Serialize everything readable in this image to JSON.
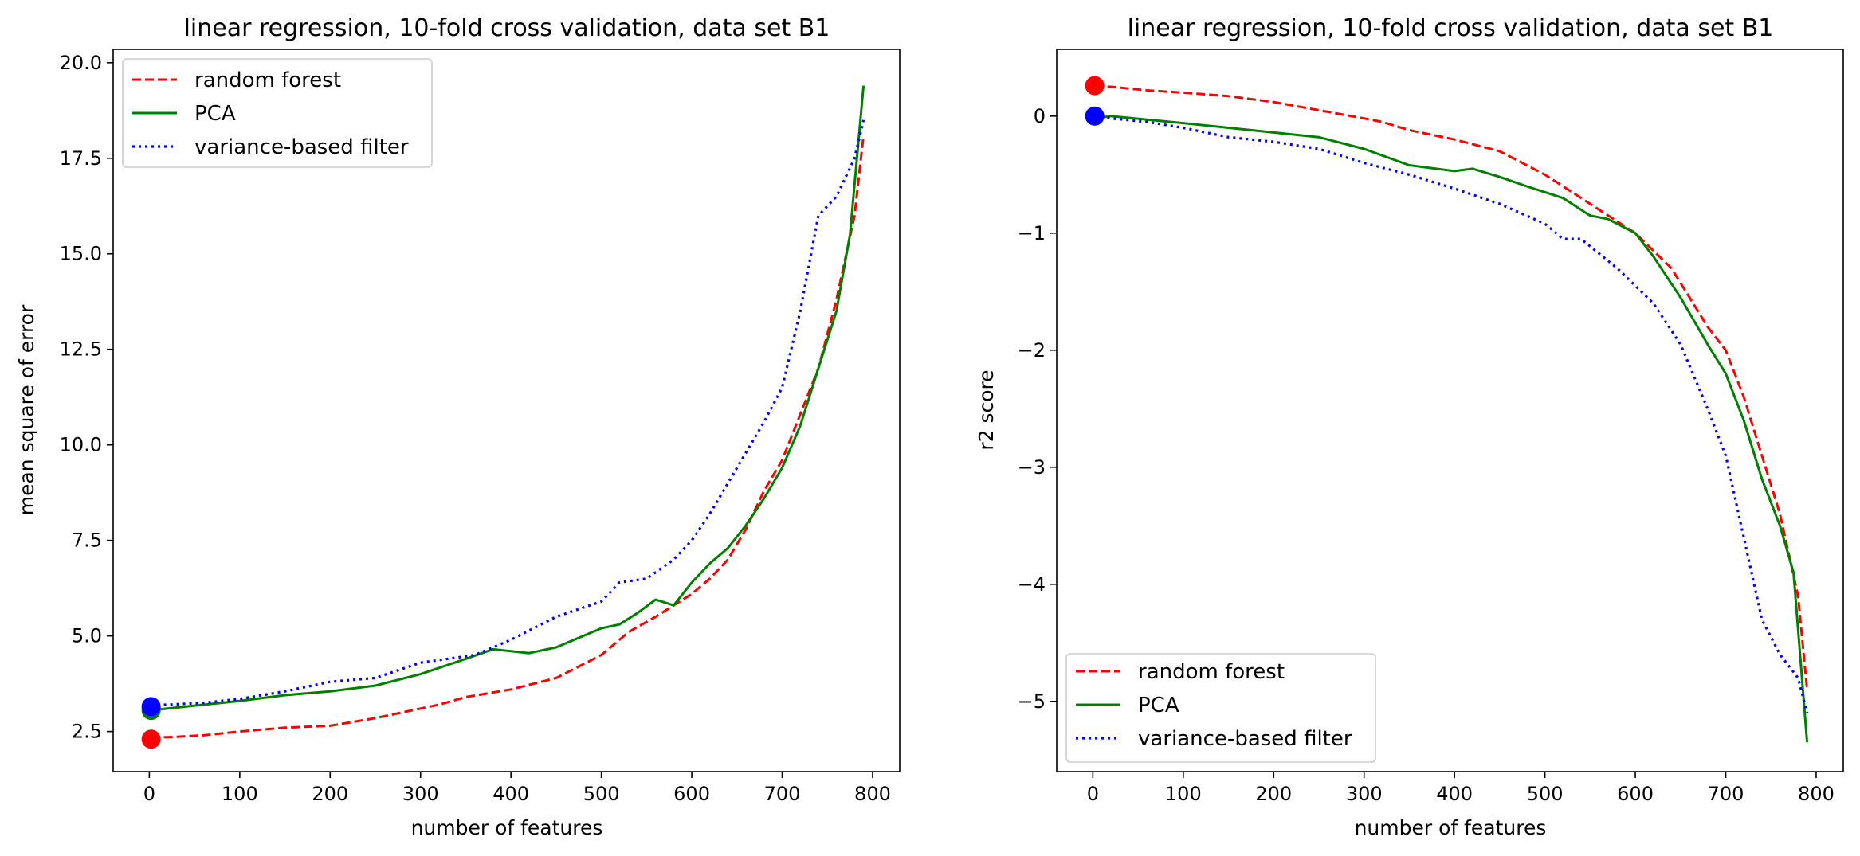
{
  "colors": {
    "random_forest": "#ff0000",
    "pca": "#008000",
    "variance_filter": "#0000ff"
  },
  "chart_data": [
    {
      "type": "line",
      "title": "linear regression, 10-fold cross validation, data set B1",
      "xlabel": "number of features",
      "ylabel": "mean square of error",
      "xlim": [
        -40,
        830
      ],
      "ylim": [
        1.45,
        20.35
      ],
      "xticks": [
        "0",
        "100",
        "200",
        "300",
        "400",
        "500",
        "600",
        "700",
        "800"
      ],
      "xtick_values": [
        0,
        100,
        200,
        300,
        400,
        500,
        600,
        700,
        800
      ],
      "yticks": [
        "2.5",
        "5.0",
        "7.5",
        "10.0",
        "12.5",
        "15.0",
        "17.5",
        "20.0"
      ],
      "ytick_values": [
        2.5,
        5.0,
        7.5,
        10.0,
        12.5,
        15.0,
        17.5,
        20.0
      ],
      "legend_position": "upper-left",
      "grid": false,
      "series": [
        {
          "name": "random forest",
          "style": "dashed",
          "color_key": "random_forest",
          "x": [
            2,
            20,
            60,
            100,
            150,
            200,
            250,
            300,
            320,
            350,
            400,
            450,
            500,
            530,
            560,
            580,
            600,
            620,
            640,
            660,
            680,
            700,
            720,
            740,
            760,
            780,
            790
          ],
          "y": [
            2.35,
            2.35,
            2.4,
            2.5,
            2.6,
            2.65,
            2.85,
            3.1,
            3.2,
            3.4,
            3.6,
            3.9,
            4.5,
            5.1,
            5.5,
            5.8,
            6.1,
            6.5,
            7.0,
            7.8,
            8.8,
            9.6,
            10.8,
            12.0,
            13.8,
            16.0,
            18.1
          ],
          "marker": {
            "x": 2,
            "y": 2.3
          }
        },
        {
          "name": "PCA",
          "style": "solid",
          "color_key": "pca",
          "x": [
            2,
            20,
            60,
            100,
            150,
            200,
            250,
            300,
            350,
            380,
            400,
            420,
            450,
            480,
            500,
            520,
            540,
            560,
            580,
            600,
            620,
            640,
            660,
            680,
            700,
            720,
            740,
            760,
            775,
            790
          ],
          "y": [
            3.05,
            3.1,
            3.2,
            3.3,
            3.45,
            3.55,
            3.7,
            4.0,
            4.4,
            4.65,
            4.6,
            4.55,
            4.7,
            5.0,
            5.2,
            5.3,
            5.6,
            5.95,
            5.8,
            6.4,
            6.9,
            7.3,
            7.9,
            8.6,
            9.4,
            10.5,
            12.0,
            13.5,
            15.5,
            19.4
          ],
          "marker": {
            "x": 2,
            "y": 3.05
          }
        },
        {
          "name": "variance-based filter",
          "style": "dotted",
          "color_key": "variance_filter",
          "x": [
            2,
            20,
            60,
            100,
            150,
            200,
            250,
            300,
            330,
            360,
            400,
            450,
            500,
            520,
            550,
            580,
            600,
            620,
            650,
            680,
            700,
            720,
            740,
            760,
            780,
            790
          ],
          "y": [
            3.2,
            3.2,
            3.25,
            3.35,
            3.55,
            3.8,
            3.9,
            4.3,
            4.4,
            4.5,
            4.9,
            5.5,
            5.9,
            6.4,
            6.5,
            7.0,
            7.5,
            8.2,
            9.4,
            10.6,
            11.5,
            13.5,
            16.0,
            16.5,
            17.5,
            18.5
          ],
          "marker": {
            "x": 2,
            "y": 3.15
          }
        }
      ]
    },
    {
      "type": "line",
      "title": "linear regression, 10-fold cross validation, data set B1",
      "xlabel": "number of features",
      "ylabel": "r2 score",
      "xlim": [
        -40,
        830
      ],
      "ylim": [
        -5.6,
        0.57
      ],
      "xticks": [
        "0",
        "100",
        "200",
        "300",
        "400",
        "500",
        "600",
        "700",
        "800"
      ],
      "xtick_values": [
        0,
        100,
        200,
        300,
        400,
        500,
        600,
        700,
        800
      ],
      "yticks": [
        "0",
        "−1",
        "−2",
        "−3",
        "−4",
        "−5"
      ],
      "ytick_values": [
        0,
        -1,
        -2,
        -3,
        -4,
        -5
      ],
      "legend_position": "lower-left",
      "grid": false,
      "series": [
        {
          "name": "random forest",
          "style": "dashed",
          "color_key": "random_forest",
          "x": [
            2,
            20,
            60,
            100,
            150,
            200,
            250,
            300,
            320,
            350,
            400,
            450,
            500,
            530,
            560,
            600,
            640,
            680,
            700,
            720,
            740,
            760,
            780,
            790
          ],
          "y": [
            0.25,
            0.25,
            0.22,
            0.2,
            0.17,
            0.12,
            0.05,
            -0.02,
            -0.05,
            -0.12,
            -0.2,
            -0.3,
            -0.5,
            -0.65,
            -0.8,
            -1.0,
            -1.3,
            -1.8,
            -2.0,
            -2.4,
            -2.9,
            -3.4,
            -4.1,
            -4.9
          ],
          "marker": {
            "x": 2,
            "y": 0.26
          }
        },
        {
          "name": "PCA",
          "style": "solid",
          "color_key": "pca",
          "x": [
            2,
            20,
            60,
            100,
            150,
            200,
            250,
            300,
            350,
            400,
            420,
            450,
            480,
            500,
            520,
            550,
            570,
            600,
            620,
            650,
            680,
            700,
            720,
            740,
            760,
            775,
            790
          ],
          "y": [
            -0.02,
            0.0,
            -0.03,
            -0.06,
            -0.1,
            -0.14,
            -0.18,
            -0.28,
            -0.42,
            -0.47,
            -0.45,
            -0.52,
            -0.6,
            -0.65,
            -0.7,
            -0.85,
            -0.88,
            -1.0,
            -1.2,
            -1.55,
            -1.95,
            -2.2,
            -2.6,
            -3.1,
            -3.5,
            -3.9,
            -5.35
          ],
          "marker": {
            "x": 2,
            "y": 0.0
          }
        },
        {
          "name": "variance-based filter",
          "style": "dotted",
          "color_key": "variance_filter",
          "x": [
            2,
            20,
            60,
            100,
            150,
            200,
            250,
            300,
            350,
            400,
            450,
            500,
            520,
            540,
            580,
            600,
            620,
            650,
            680,
            700,
            720,
            740,
            760,
            780,
            790
          ],
          "y": [
            0.0,
            -0.02,
            -0.05,
            -0.1,
            -0.18,
            -0.22,
            -0.28,
            -0.4,
            -0.5,
            -0.62,
            -0.75,
            -0.92,
            -1.05,
            -1.05,
            -1.3,
            -1.45,
            -1.6,
            -1.95,
            -2.5,
            -2.9,
            -3.6,
            -4.3,
            -4.6,
            -4.8,
            -5.1
          ],
          "marker": {
            "x": 2,
            "y": 0.0
          }
        }
      ]
    }
  ]
}
